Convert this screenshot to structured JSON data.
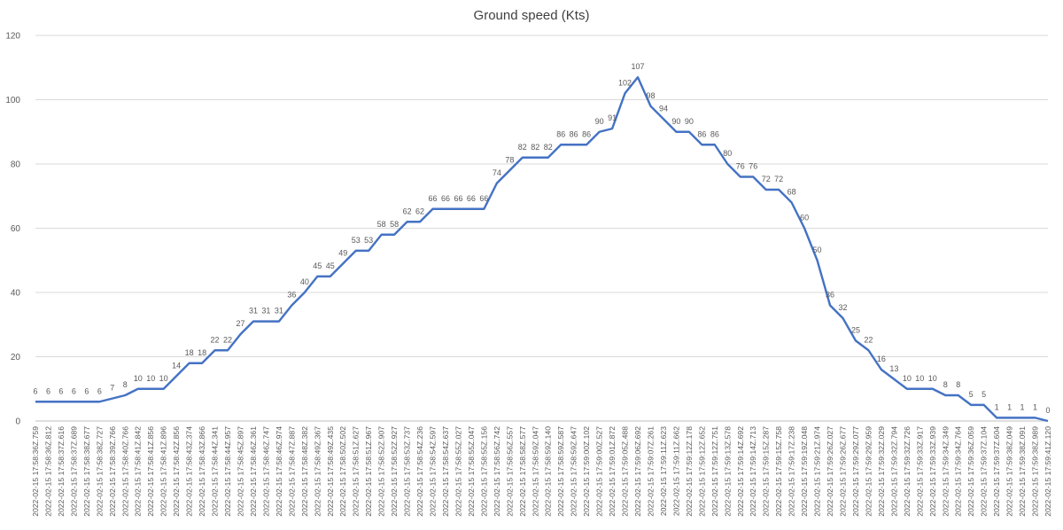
{
  "chart_data": {
    "type": "line",
    "title": "Ground speed (Kts)",
    "xlabel": "",
    "ylabel": "",
    "ylim": [
      0,
      120
    ],
    "yticks": [
      0,
      20,
      40,
      60,
      80,
      100,
      120
    ],
    "grid": true,
    "legend": "none",
    "series_color": "#4472c4",
    "categories": [
      "2022-02-15 17:58:36Z.759",
      "2022-02-15 17:58:36Z.812",
      "2022-02-15 17:58:37Z.616",
      "2022-02-15 17:58:37Z.689",
      "2022-02-15 17:58:38Z.677",
      "2022-02-15 17:58:38Z.727",
      "2022-02-15 17:58:39Z.766",
      "2022-02-15 17:58:40Z.766",
      "2022-02-15 17:58:41Z.842",
      "2022-02-15 17:58:41Z.856",
      "2022-02-15 17:58:41Z.896",
      "2022-02-15 17:58:42Z.856",
      "2022-02-15 17:58:43Z.374",
      "2022-02-15 17:58:43Z.866",
      "2022-02-15 17:58:44Z.341",
      "2022-02-15 17:58:44Z.957",
      "2022-02-15 17:58:45Z.897",
      "2022-02-15 17:58:46Z.361",
      "2022-02-15 17:58:46Z.747",
      "2022-02-15 17:58:46Z.974",
      "2022-02-15 17:58:47Z.887",
      "2022-02-15 17:58:48Z.382",
      "2022-02-15 17:58:49Z.367",
      "2022-02-15 17:58:49Z.435",
      "2022-02-15 17:58:50Z.502",
      "2022-02-15 17:58:51Z.627",
      "2022-02-15 17:58:51Z.967",
      "2022-02-15 17:58:52Z.907",
      "2022-02-15 17:58:52Z.927",
      "2022-02-15 17:58:53Z.737",
      "2022-02-15 17:58:54Z.236",
      "2022-02-15 17:58:54Z.597",
      "2022-02-15 17:58:54Z.637",
      "2022-02-15 17:58:55Z.027",
      "2022-02-15 17:58:55Z.047",
      "2022-02-15 17:58:55Z.156",
      "2022-02-15 17:58:56Z.742",
      "2022-02-15 17:58:56Z.557",
      "2022-02-15 17:58:58Z.577",
      "2022-02-15 17:58:59Z.047",
      "2022-02-15 17:58:59Z.140",
      "2022-02-15 17:58:59Z.587",
      "2022-02-15 17:58:59Z.647",
      "2022-02-15 17:59:00Z.102",
      "2022-02-15 17:59:00Z.527",
      "2022-02-15 17:59:01Z.872",
      "2022-02-15 17:59:05Z.488",
      "2022-02-15 17:59:06Z.692",
      "2022-02-15 17:59:07Z.261",
      "2022-02-15 17:59:11Z.623",
      "2022-02-15 17:59:11Z.662",
      "2022-02-15 17:59:12Z.178",
      "2022-02-15 17:59:12Z.652",
      "2022-02-15 17:59:12Z.751",
      "2022-02-15 17:59:13Z.578",
      "2022-02-15 17:59:14Z.692",
      "2022-02-15 17:59:14Z.713",
      "2022-02-15 17:59:15Z.287",
      "2022-02-15 17:59:15Z.758",
      "2022-02-15 17:59:17Z.238",
      "2022-02-15 17:59:19Z.048",
      "2022-02-15 17:59:21Z.974",
      "2022-02-15 17:59:26Z.027",
      "2022-02-15 17:59:26Z.677",
      "2022-02-15 17:59:29Z.077",
      "2022-02-15 17:59:29Z.959",
      "2022-02-15 17:59:32Z.029",
      "2022-02-15 17:59:32Z.794",
      "2022-02-15 17:59:32Z.726",
      "2022-02-15 17:59:33Z.917",
      "2022-02-15 17:59:33Z.939",
      "2022-02-15 17:59:34Z.349",
      "2022-02-15 17:59:34Z.764",
      "2022-02-15 17:59:36Z.059",
      "2022-02-15 17:59:37Z.104",
      "2022-02-15 17:59:37Z.604",
      "2022-02-15 17:59:38Z.049",
      "2022-02-15 17:59:38Z.091",
      "2022-02-15 17:59:38Z.989",
      "2022-02-15 17:59:41Z.120"
    ],
    "values": [
      6,
      6,
      6,
      6,
      6,
      6,
      7,
      8,
      10,
      10,
      10,
      14,
      18,
      18,
      22,
      22,
      27,
      31,
      31,
      31,
      36,
      40,
      45,
      45,
      49,
      53,
      53,
      58,
      58,
      62,
      62,
      66,
      66,
      66,
      66,
      66,
      74,
      78,
      82,
      82,
      82,
      86,
      86,
      86,
      90,
      91,
      102,
      107,
      98,
      94,
      90,
      90,
      86,
      86,
      80,
      76,
      76,
      72,
      72,
      68,
      60,
      50,
      36,
      32,
      25,
      22,
      16,
      13,
      10,
      10,
      10,
      8,
      8,
      5,
      5,
      1,
      1,
      1,
      1,
      0
    ]
  }
}
